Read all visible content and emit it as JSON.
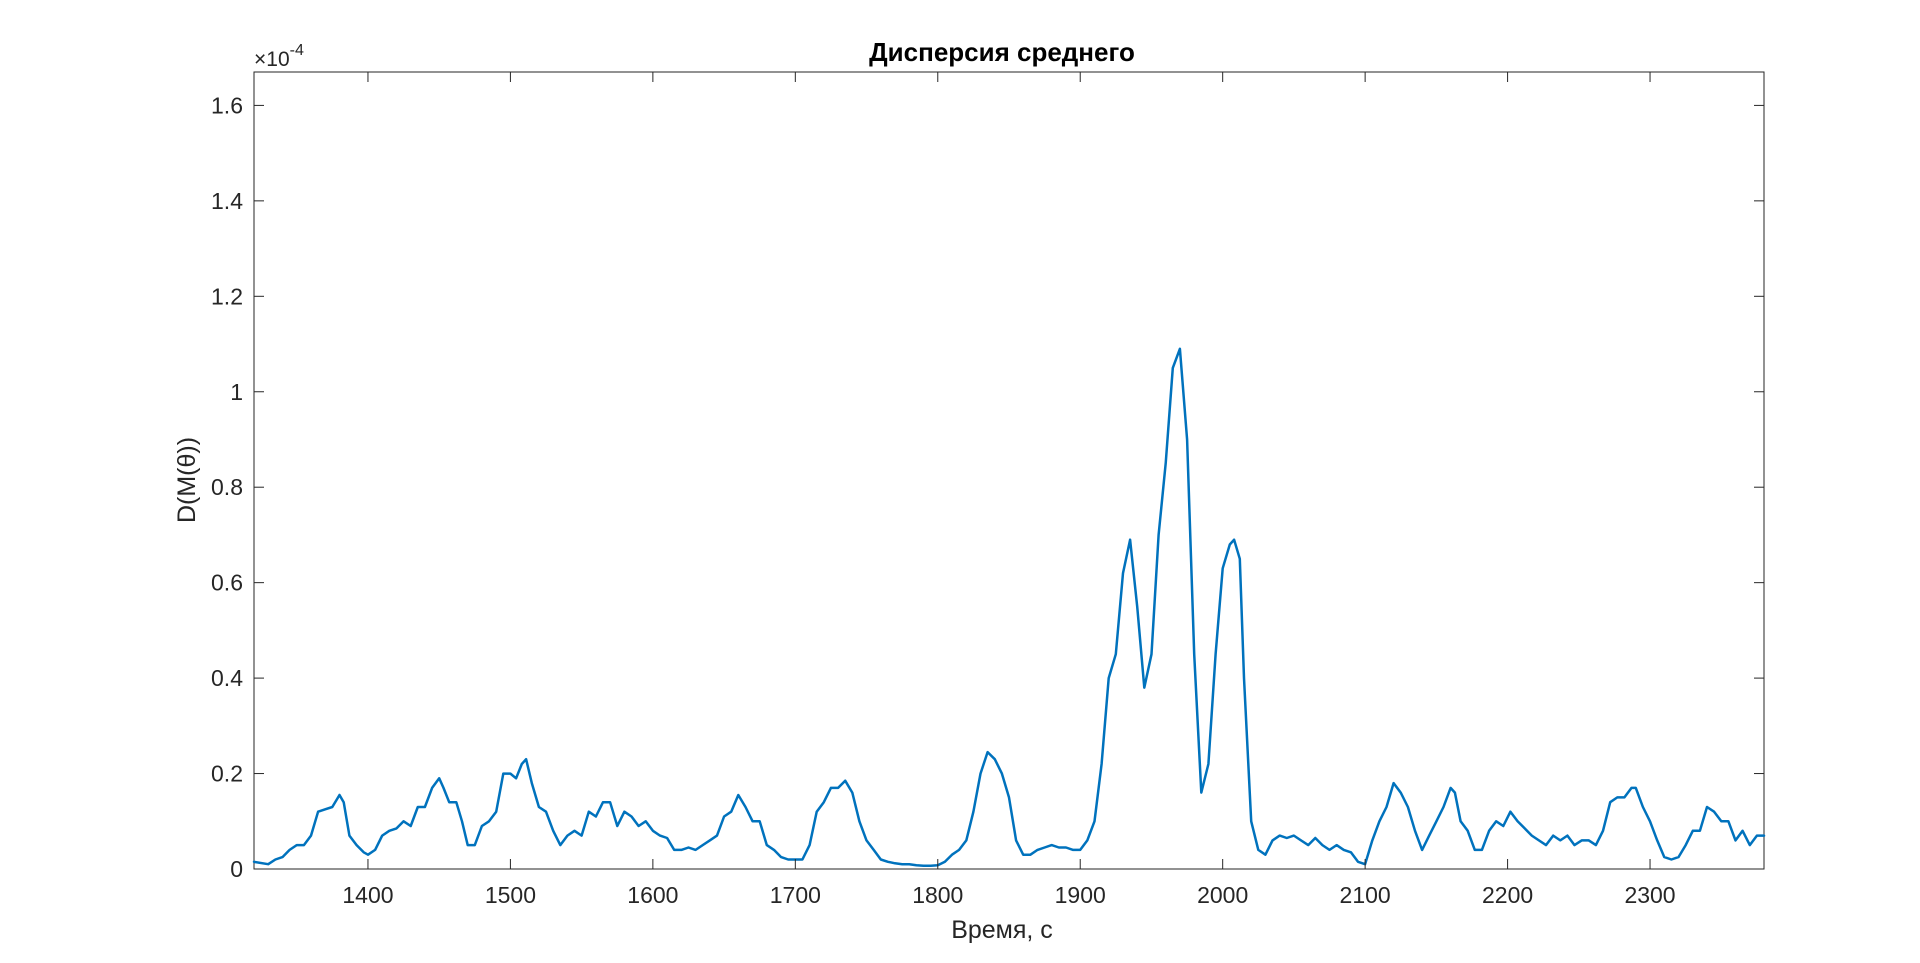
{
  "chart_data": {
    "type": "line",
    "title": "Дисперсия среднего",
    "xlabel": "Время, с",
    "ylabel": "D(M(θ))",
    "y_exponent_label": "×10",
    "y_exponent": "-4",
    "xlim": [
      1320,
      2380
    ],
    "ylim": [
      0,
      1.67
    ],
    "x_ticks": [
      1400,
      1500,
      1600,
      1700,
      1800,
      1900,
      2000,
      2100,
      2200,
      2300
    ],
    "x_tick_labels": [
      "1400",
      "1500",
      "1600",
      "1700",
      "1800",
      "1900",
      "2000",
      "2100",
      "2200",
      "2300"
    ],
    "y_ticks": [
      0,
      0.2,
      0.4,
      0.6,
      0.8,
      1,
      1.2,
      1.4,
      1.6
    ],
    "y_tick_labels": [
      "0",
      "0.2",
      "0.4",
      "0.6",
      "0.8",
      "1",
      "1.2",
      "1.4",
      "1.6"
    ],
    "grid": false,
    "line_color": "#0072BD",
    "series": [
      {
        "x": [
          1320,
          1330,
          1335,
          1340,
          1345,
          1350,
          1355,
          1360,
          1365,
          1370,
          1375,
          1380,
          1383,
          1387,
          1392,
          1397,
          1400,
          1405,
          1410,
          1415,
          1420,
          1425,
          1430,
          1435,
          1440,
          1445,
          1450,
          1453,
          1457,
          1462,
          1466,
          1470,
          1475,
          1480,
          1485,
          1490,
          1495,
          1500,
          1504,
          1508,
          1511,
          1515,
          1520,
          1525,
          1530,
          1535,
          1540,
          1545,
          1550,
          1555,
          1560,
          1565,
          1570,
          1575,
          1580,
          1585,
          1590,
          1595,
          1600,
          1605,
          1610,
          1615,
          1620,
          1625,
          1630,
          1635,
          1640,
          1645,
          1650,
          1655,
          1660,
          1665,
          1670,
          1675,
          1680,
          1685,
          1690,
          1695,
          1700,
          1705,
          1710,
          1715,
          1720,
          1725,
          1730,
          1735,
          1740,
          1745,
          1750,
          1755,
          1760,
          1765,
          1770,
          1775,
          1780,
          1785,
          1790,
          1795,
          1800,
          1805,
          1810,
          1815,
          1820,
          1825,
          1830,
          1835,
          1840,
          1845,
          1850,
          1855,
          1860,
          1865,
          1870,
          1875,
          1880,
          1885,
          1890,
          1895,
          1900,
          1905,
          1910,
          1915,
          1920,
          1925,
          1930,
          1935,
          1940,
          1945,
          1950,
          1955,
          1960,
          1965,
          1970,
          1975,
          1980,
          1985,
          1990,
          1995,
          2000,
          2005,
          2008,
          2012,
          2015,
          2020,
          2025,
          2030,
          2035,
          2040,
          2045,
          2050,
          2055,
          2060,
          2065,
          2070,
          2075,
          2080,
          2085,
          2090,
          2095,
          2100,
          2105,
          2110,
          2115,
          2120,
          2125,
          2130,
          2135,
          2140,
          2145,
          2150,
          2155,
          2160,
          2163,
          2167,
          2172,
          2177,
          2182,
          2187,
          2192,
          2197,
          2202,
          2207,
          2212,
          2217,
          2222,
          2227,
          2232,
          2237,
          2242,
          2247,
          2252,
          2257,
          2262,
          2267,
          2272,
          2277,
          2282,
          2287,
          2290,
          2295,
          2300,
          2305,
          2310,
          2315,
          2320,
          2325,
          2330,
          2335,
          2340,
          2345,
          2350,
          2355,
          2360,
          2365,
          2370,
          2375,
          2380
        ],
        "y": [
          0.015,
          0.01,
          0.02,
          0.025,
          0.04,
          0.05,
          0.05,
          0.07,
          0.12,
          0.125,
          0.13,
          0.155,
          0.14,
          0.07,
          0.05,
          0.035,
          0.03,
          0.04,
          0.07,
          0.08,
          0.085,
          0.1,
          0.09,
          0.13,
          0.13,
          0.17,
          0.19,
          0.17,
          0.14,
          0.14,
          0.1,
          0.05,
          0.05,
          0.09,
          0.1,
          0.12,
          0.2,
          0.2,
          0.19,
          0.22,
          0.23,
          0.18,
          0.13,
          0.12,
          0.08,
          0.05,
          0.07,
          0.08,
          0.07,
          0.12,
          0.11,
          0.14,
          0.14,
          0.09,
          0.12,
          0.11,
          0.09,
          0.1,
          0.08,
          0.07,
          0.065,
          0.04,
          0.04,
          0.045,
          0.04,
          0.05,
          0.06,
          0.07,
          0.11,
          0.12,
          0.155,
          0.13,
          0.1,
          0.1,
          0.05,
          0.04,
          0.025,
          0.02,
          0.02,
          0.02,
          0.05,
          0.12,
          0.14,
          0.17,
          0.17,
          0.185,
          0.16,
          0.1,
          0.06,
          0.04,
          0.02,
          0.015,
          0.012,
          0.01,
          0.01,
          0.008,
          0.007,
          0.007,
          0.008,
          0.015,
          0.03,
          0.04,
          0.06,
          0.12,
          0.2,
          0.245,
          0.23,
          0.2,
          0.15,
          0.06,
          0.03,
          0.03,
          0.04,
          0.045,
          0.05,
          0.045,
          0.045,
          0.04,
          0.04,
          0.06,
          0.1,
          0.22,
          0.4,
          0.45,
          0.62,
          0.69,
          0.55,
          0.38,
          0.45,
          0.7,
          0.85,
          1.05,
          1.09,
          0.9,
          0.45,
          0.16,
          0.22,
          0.45,
          0.63,
          0.68,
          0.69,
          0.65,
          0.4,
          0.1,
          0.04,
          0.03,
          0.06,
          0.07,
          0.065,
          0.07,
          0.06,
          0.05,
          0.065,
          0.05,
          0.04,
          0.05,
          0.04,
          0.035,
          0.015,
          0.01,
          0.06,
          0.1,
          0.13,
          0.18,
          0.16,
          0.13,
          0.08,
          0.04,
          0.07,
          0.1,
          0.13,
          0.17,
          0.16,
          0.1,
          0.08,
          0.04,
          0.04,
          0.08,
          0.1,
          0.09,
          0.12,
          0.1,
          0.085,
          0.07,
          0.06,
          0.05,
          0.07,
          0.06,
          0.07,
          0.05,
          0.06,
          0.06,
          0.05,
          0.08,
          0.14,
          0.15,
          0.15,
          0.17,
          0.17,
          0.13,
          0.1,
          0.06,
          0.025,
          0.02,
          0.025,
          0.05,
          0.08,
          0.08,
          0.13,
          0.12,
          0.1,
          0.1,
          0.06,
          0.08,
          0.05,
          0.07,
          0.07
        ]
      }
    ]
  }
}
